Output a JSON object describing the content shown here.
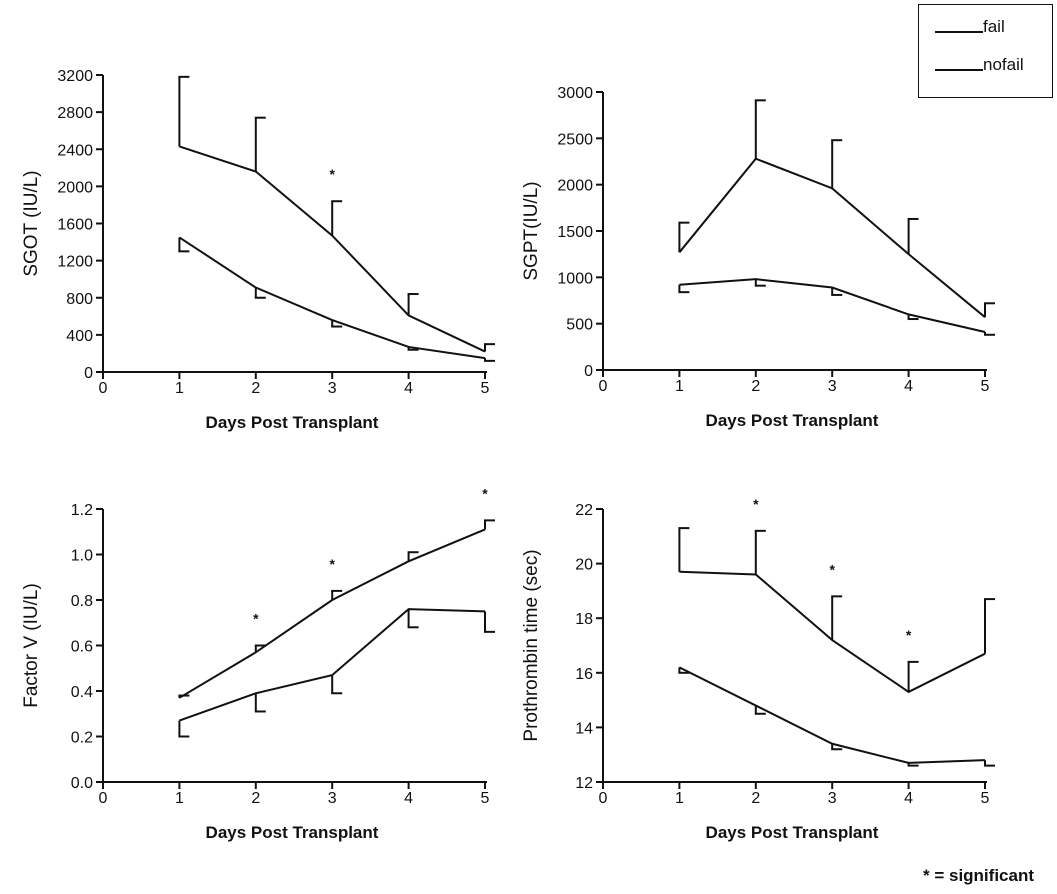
{
  "legend": {
    "entries": [
      "fail",
      "nofail"
    ]
  },
  "footnote": "* = significant",
  "chart_data": [
    {
      "type": "line",
      "xlabel": "Days Post Transplant",
      "ylabel": "SGOT (IU/L)",
      "x": [
        1,
        2,
        3,
        4,
        5
      ],
      "xticks": [
        0,
        1,
        2,
        3,
        4,
        5
      ],
      "ylim": [
        0,
        3200
      ],
      "yticks": [
        0,
        400,
        800,
        1200,
        1600,
        2000,
        2400,
        2800,
        3200
      ],
      "series": [
        {
          "name": "fail",
          "values": [
            2430,
            2160,
            1470,
            610,
            220
          ],
          "error": [
            750,
            580,
            370,
            230,
            80
          ],
          "error_dir": "up"
        },
        {
          "name": "nofail",
          "values": [
            1450,
            910,
            560,
            270,
            150
          ],
          "error": [
            150,
            110,
            70,
            30,
            30
          ],
          "error_dir": "down"
        }
      ],
      "significant_x": [
        3
      ],
      "grid": false
    },
    {
      "type": "line",
      "xlabel": "Days Post Transplant",
      "ylabel": "SGPT(IU/L)",
      "x": [
        1,
        2,
        3,
        4,
        5
      ],
      "xticks": [
        0,
        1,
        2,
        3,
        4,
        5
      ],
      "ylim": [
        0,
        3000
      ],
      "yticks": [
        0,
        500,
        1000,
        1500,
        2000,
        2500,
        3000
      ],
      "series": [
        {
          "name": "fail",
          "values": [
            1270,
            2280,
            1960,
            1250,
            570
          ],
          "error": [
            320,
            630,
            520,
            380,
            150
          ],
          "error_dir": "up"
        },
        {
          "name": "nofail",
          "values": [
            920,
            980,
            890,
            600,
            410
          ],
          "error": [
            80,
            70,
            80,
            50,
            30
          ],
          "error_dir": "down"
        }
      ],
      "significant_x": [],
      "grid": false
    },
    {
      "type": "line",
      "xlabel": "Days Post Transplant",
      "ylabel": "Factor V (IU/L)",
      "x": [
        1,
        2,
        3,
        4,
        5
      ],
      "xticks": [
        0,
        1,
        2,
        3,
        4,
        5
      ],
      "ylim": [
        0,
        1.2
      ],
      "yticks": [
        "0.0",
        "0.2",
        "0.4",
        "0.6",
        "0.8",
        "1.0",
        "1.2"
      ],
      "series": [
        {
          "name": "fail",
          "values": [
            0.37,
            0.57,
            0.8,
            0.97,
            1.11
          ],
          "error": [
            0.01,
            0.03,
            0.04,
            0.04,
            0.04
          ],
          "error_dir": "up"
        },
        {
          "name": "nofail",
          "values": [
            0.27,
            0.39,
            0.47,
            0.76,
            0.75
          ],
          "error": [
            0.07,
            0.08,
            0.08,
            0.08,
            0.09
          ],
          "error_dir": "down"
        }
      ],
      "significant_x": [
        2,
        3,
        5
      ],
      "grid": false
    },
    {
      "type": "line",
      "xlabel": "Days Post Transplant",
      "ylabel": "Prothrombin time (sec)",
      "x": [
        1,
        2,
        3,
        4,
        5
      ],
      "xticks": [
        0,
        1,
        2,
        3,
        4,
        5
      ],
      "ylim": [
        12,
        22
      ],
      "yticks": [
        12,
        14,
        16,
        18,
        20,
        22
      ],
      "series": [
        {
          "name": "fail",
          "values": [
            19.7,
            19.6,
            17.2,
            15.3,
            16.7
          ],
          "error": [
            1.6,
            1.6,
            1.6,
            1.1,
            2.0
          ],
          "error_dir": "up"
        },
        {
          "name": "nofail",
          "values": [
            16.2,
            14.8,
            13.4,
            12.7,
            12.8
          ],
          "error": [
            0.2,
            0.3,
            0.2,
            0.1,
            0.2
          ],
          "error_dir": "down"
        }
      ],
      "significant_x": [
        2,
        3,
        4
      ],
      "grid": false
    }
  ]
}
